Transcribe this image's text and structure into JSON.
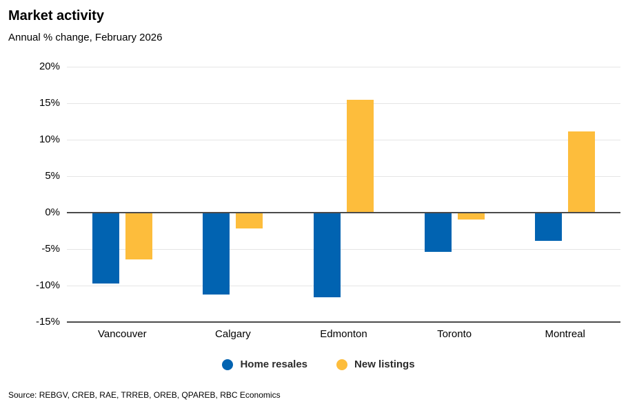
{
  "header": {
    "title": "Market activity",
    "subtitle": "Annual % change, February 2026"
  },
  "footer": {
    "source": "Source: REBGV, CREB, RAE, TRREB, OREB, QPAREB, RBC Economics"
  },
  "colors": {
    "home_resales": "#0163B1",
    "new_listings": "#FDBD3C",
    "gridline": "#e5e5e5",
    "axis_line": "#4a4a4a"
  },
  "chart_data": {
    "type": "bar",
    "title": "Market activity",
    "subtitle": "Annual % change, February 2026",
    "categories": [
      "Vancouver",
      "Calgary",
      "Edmonton",
      "Toronto",
      "Montreal"
    ],
    "series": [
      {
        "name": "Home resales",
        "color": "#0163B1",
        "values": [
          -9.7,
          -11.2,
          -11.6,
          -5.4,
          -3.9
        ]
      },
      {
        "name": "New listings",
        "color": "#FDBD3C",
        "values": [
          -6.4,
          -2.2,
          15.5,
          -0.9,
          11.1
        ]
      }
    ],
    "xlabel": "",
    "ylabel": "",
    "ylim": [
      -15,
      20
    ],
    "ytick_step": 5,
    "ytick_suffix": "%",
    "grid": true,
    "legend_position": "bottom"
  }
}
